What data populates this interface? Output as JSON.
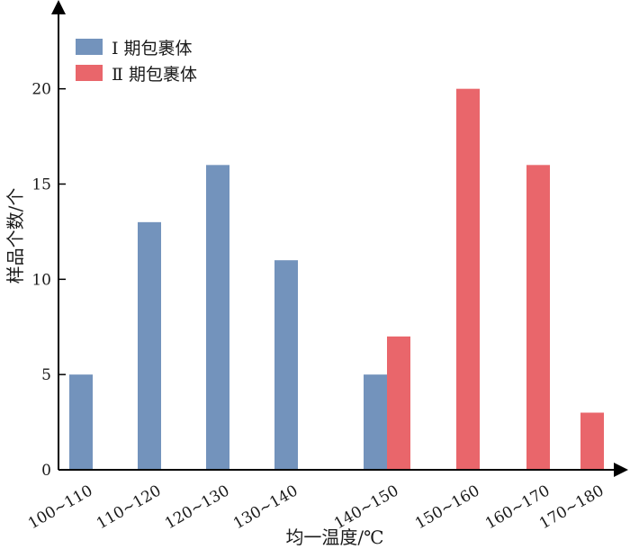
{
  "chart_data": {
    "type": "bar",
    "xlabel": "均一温度/℃",
    "ylabel": "样品个数/个",
    "ylim": [
      0,
      24
    ],
    "yticks": [
      0,
      5,
      10,
      15,
      20
    ],
    "grid": false,
    "legend_position": "top-left",
    "categories": [
      "100~110",
      "110~120",
      "120~130",
      "130~140",
      "140~150",
      "150~160",
      "160~170",
      "170~180"
    ],
    "series": [
      {
        "name": "Ⅰ 期包裹体",
        "color": "#7393bc",
        "values": [
          5,
          13,
          16,
          11,
          5,
          0,
          0,
          0
        ]
      },
      {
        "name": "Ⅱ 期包裹体",
        "color": "#e9666b",
        "values": [
          0,
          0,
          0,
          0,
          7,
          20,
          16,
          3
        ]
      }
    ]
  }
}
